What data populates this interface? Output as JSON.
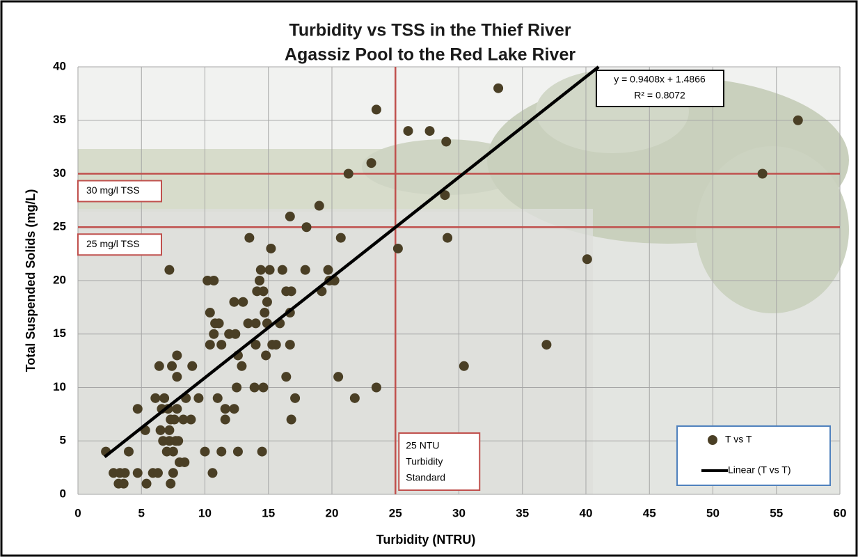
{
  "chart_data": {
    "type": "scatter",
    "title": [
      "Turbidity vs TSS in the Thief River",
      "Agassiz Pool to the Red Lake River"
    ],
    "x_label": "Turbidity (NTRU)",
    "y_label": "Total Suspended Solids (mg/L)",
    "xlim": [
      0,
      60
    ],
    "xticks": [
      0,
      5,
      10,
      15,
      20,
      25,
      30,
      35,
      40,
      45,
      50,
      55,
      60
    ],
    "ylim": [
      0,
      40
    ],
    "yticks": [
      0,
      5,
      10,
      15,
      20,
      25,
      30,
      35,
      40
    ],
    "grid": true,
    "legend": "bottom-right",
    "series": [
      {
        "name": "T vs T",
        "type": "scatter",
        "color": "#4a3f25",
        "x": [
          2.2,
          2.8,
          3.2,
          3.3,
          3.6,
          3.7,
          4.0,
          4.7,
          4.7,
          5.3,
          5.4,
          5.9,
          6.1,
          6.3,
          6.4,
          6.5,
          6.6,
          6.7,
          6.8,
          7.0,
          7.1,
          7.2,
          7.2,
          7.2,
          7.3,
          7.3,
          7.4,
          7.5,
          7.5,
          7.6,
          7.7,
          7.8,
          7.8,
          7.8,
          7.9,
          8.0,
          8.4,
          8.3,
          8.5,
          8.9,
          9.0,
          9.5,
          10.0,
          10.2,
          10.4,
          10.4,
          10.6,
          10.7,
          10.7,
          10.8,
          11.0,
          11.1,
          11.3,
          11.3,
          11.6,
          11.6,
          11.9,
          12.3,
          12.3,
          12.4,
          12.5,
          12.6,
          12.6,
          12.9,
          13.0,
          13.4,
          13.5,
          13.9,
          14.0,
          14.0,
          14.1,
          14.3,
          14.4,
          14.5,
          14.6,
          14.6,
          14.7,
          14.8,
          14.9,
          14.9,
          15.1,
          15.2,
          15.3,
          15.6,
          15.9,
          16.1,
          16.4,
          16.4,
          16.7,
          16.7,
          16.8,
          16.7,
          16.8,
          17.1,
          17.9,
          18.0,
          19.0,
          19.2,
          19.7,
          19.8,
          20.2,
          20.5,
          20.7,
          21.3,
          21.8,
          23.1,
          23.5,
          23.5,
          25.2,
          26.0,
          27.7,
          28.9,
          29.0,
          29.1,
          30.4,
          33.1,
          36.9,
          40.1,
          53.9,
          56.7
        ],
        "values": [
          4,
          2,
          1,
          2,
          1,
          2,
          4,
          8,
          2,
          6,
          1,
          2,
          9,
          2,
          12,
          6,
          8,
          5,
          9,
          4,
          8,
          6,
          21,
          5,
          1,
          7,
          12,
          4,
          2,
          7,
          5,
          13,
          11,
          8,
          5,
          3,
          3,
          7,
          9,
          7,
          12,
          9,
          4,
          20,
          14,
          17,
          2,
          15,
          20,
          16,
          9,
          16,
          14,
          4,
          8,
          7,
          15,
          8,
          18,
          15,
          10,
          4,
          13,
          12,
          18,
          16,
          24,
          10,
          16,
          14,
          19,
          20,
          21,
          4,
          10,
          19,
          17,
          13,
          18,
          16,
          21,
          23,
          14,
          14,
          16,
          21,
          11,
          19,
          26,
          14,
          7,
          17,
          19,
          9,
          21,
          25,
          27,
          19,
          21,
          20,
          20,
          11,
          24,
          30,
          9,
          31,
          36,
          10,
          23,
          34,
          34,
          28,
          33,
          24,
          12,
          38,
          14,
          22,
          30,
          35
        ]
      },
      {
        "name": "Linear (T vs T)",
        "type": "line",
        "color": "#000000",
        "x": [
          2.1,
          41
        ],
        "values": [
          3.5,
          40
        ]
      }
    ],
    "reference_lines": [
      {
        "axis": "y",
        "value": 30,
        "color": "#c0504d",
        "label": [
          "30 mg/l TSS"
        ]
      },
      {
        "axis": "y",
        "value": 25,
        "color": "#c0504d",
        "label": [
          "25 mg/l TSS"
        ]
      },
      {
        "axis": "x",
        "value": 25,
        "color": "#c0504d",
        "label": [
          "25 NTU",
          "Turbidity",
          "Standard"
        ]
      }
    ],
    "equation": [
      "y = 0.9408x + 1.4866",
      "R² = 0.8072"
    ]
  }
}
